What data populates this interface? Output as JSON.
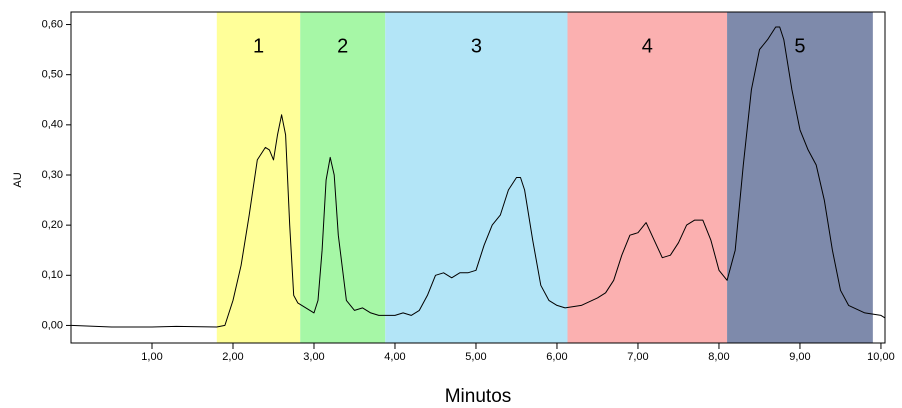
{
  "chart_data": {
    "type": "line",
    "x_label": "Minutos",
    "y_label": "AU",
    "xlim": [
      0,
      10.05
    ],
    "ylim": [
      -0.035,
      0.625
    ],
    "xticks": [
      {
        "value": 1,
        "label": "1,00"
      },
      {
        "value": 2,
        "label": "2,00"
      },
      {
        "value": 3,
        "label": "3,00"
      },
      {
        "value": 4,
        "label": "4,00"
      },
      {
        "value": 5,
        "label": "5,00"
      },
      {
        "value": 6,
        "label": "6,00"
      },
      {
        "value": 7,
        "label": "7,00"
      },
      {
        "value": 8,
        "label": "8,00"
      },
      {
        "value": 9,
        "label": "9,00"
      },
      {
        "value": 10,
        "label": "10,00"
      }
    ],
    "yticks": [
      {
        "value": 0,
        "label": "0,00"
      },
      {
        "value": 0.1,
        "label": "0,10"
      },
      {
        "value": 0.2,
        "label": "0,20"
      },
      {
        "value": 0.3,
        "label": "0,30"
      },
      {
        "value": 0.4,
        "label": "0,40"
      },
      {
        "value": 0.5,
        "label": "0,50"
      },
      {
        "value": 0.6,
        "label": "0,60"
      }
    ],
    "regions": [
      {
        "label": "1",
        "start": 1.8,
        "end": 2.83,
        "color": "#ffff99"
      },
      {
        "label": "2",
        "start": 2.83,
        "end": 3.88,
        "color": "#a6f7a6"
      },
      {
        "label": "3",
        "start": 3.88,
        "end": 6.13,
        "color": "#b3e5f7"
      },
      {
        "label": "4",
        "start": 6.13,
        "end": 8.1,
        "color": "#fbb0b0"
      },
      {
        "label": "5",
        "start": 8.1,
        "end": 9.9,
        "color": "#7e8aab"
      }
    ],
    "x": [
      0,
      0.5,
      1.0,
      1.3,
      1.8,
      1.9,
      2.0,
      2.1,
      2.2,
      2.3,
      2.4,
      2.45,
      2.5,
      2.55,
      2.6,
      2.65,
      2.7,
      2.75,
      2.8,
      2.9,
      3.0,
      3.05,
      3.1,
      3.15,
      3.2,
      3.25,
      3.3,
      3.4,
      3.5,
      3.6,
      3.7,
      3.8,
      4.0,
      4.1,
      4.2,
      4.3,
      4.4,
      4.5,
      4.6,
      4.7,
      4.8,
      4.9,
      5.0,
      5.1,
      5.2,
      5.3,
      5.4,
      5.5,
      5.55,
      5.6,
      5.7,
      5.8,
      5.9,
      6.0,
      6.1,
      6.3,
      6.5,
      6.6,
      6.7,
      6.8,
      6.9,
      7.0,
      7.1,
      7.2,
      7.3,
      7.4,
      7.5,
      7.6,
      7.7,
      7.8,
      7.9,
      8.0,
      8.1,
      8.2,
      8.3,
      8.4,
      8.5,
      8.6,
      8.7,
      8.75,
      8.8,
      8.9,
      9.0,
      9.1,
      9.2,
      9.3,
      9.4,
      9.5,
      9.6,
      9.8,
      10.0,
      10.05
    ],
    "series": [
      {
        "color": "#000000",
        "values": [
          0.0,
          -0.003,
          -0.003,
          -0.002,
          -0.003,
          0.0,
          0.05,
          0.12,
          0.22,
          0.33,
          0.355,
          0.35,
          0.33,
          0.38,
          0.42,
          0.38,
          0.2,
          0.06,
          0.045,
          0.035,
          0.025,
          0.05,
          0.15,
          0.29,
          0.335,
          0.3,
          0.18,
          0.05,
          0.03,
          0.035,
          0.025,
          0.02,
          0.02,
          0.025,
          0.02,
          0.03,
          0.06,
          0.1,
          0.105,
          0.095,
          0.105,
          0.105,
          0.11,
          0.16,
          0.2,
          0.22,
          0.27,
          0.295,
          0.295,
          0.27,
          0.17,
          0.08,
          0.05,
          0.04,
          0.035,
          0.04,
          0.055,
          0.065,
          0.09,
          0.14,
          0.18,
          0.185,
          0.205,
          0.17,
          0.135,
          0.14,
          0.165,
          0.2,
          0.21,
          0.21,
          0.17,
          0.11,
          0.09,
          0.15,
          0.32,
          0.47,
          0.55,
          0.57,
          0.595,
          0.595,
          0.57,
          0.47,
          0.39,
          0.35,
          0.32,
          0.25,
          0.15,
          0.07,
          0.04,
          0.025,
          0.02,
          0.015
        ]
      }
    ]
  }
}
